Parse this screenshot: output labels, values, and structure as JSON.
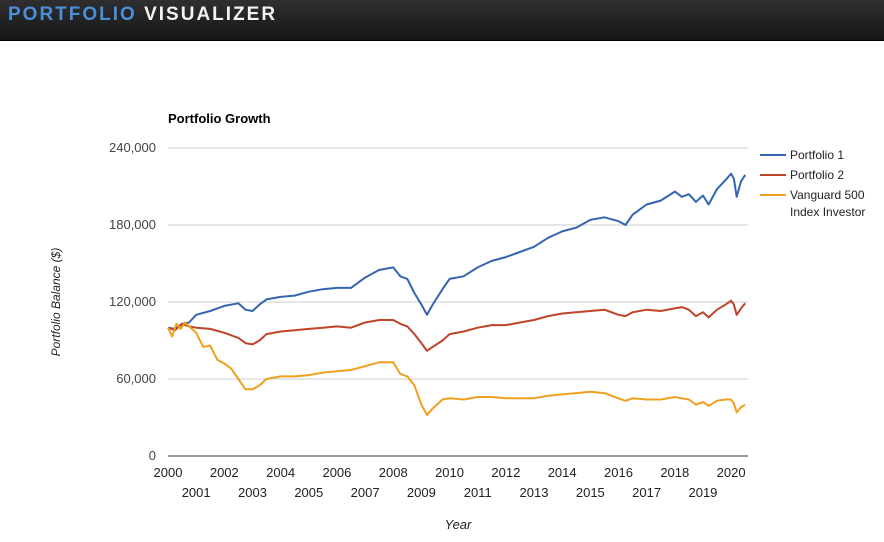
{
  "header": {
    "brand_part1": "PORTFOLIO",
    "brand_part2": "VISUALIZER"
  },
  "colors": {
    "brand_blue": "#4a90d9",
    "portfolio1": "#3465b0",
    "portfolio2": "#c1432a",
    "vanguard": "#f0a01e",
    "grid": "#cccccc"
  },
  "chart_data": {
    "type": "line",
    "title": "Portfolio Growth",
    "xlabel": "Year",
    "ylabel": "Portfolio Balance ($)",
    "xlim": [
      2000,
      2020.6
    ],
    "ylim": [
      0,
      240000
    ],
    "y_ticks": [
      0,
      60000,
      120000,
      180000,
      240000
    ],
    "y_tick_labels": [
      "0",
      "60,000",
      "120,000",
      "180,000",
      "240,000"
    ],
    "x_ticks_top_row": [
      "2000",
      "2002",
      "2004",
      "2006",
      "2008",
      "2010",
      "2012",
      "2014",
      "2016",
      "2018",
      "2020"
    ],
    "x_ticks_bottom_row": [
      "2001",
      "2003",
      "2005",
      "2007",
      "2009",
      "2011",
      "2013",
      "2015",
      "2017",
      "2019"
    ],
    "legend_position": "right",
    "grid": true,
    "series": [
      {
        "name": "Portfolio 1",
        "legend_lines": [
          "Portfolio 1"
        ],
        "points": [
          [
            2000,
            100000
          ],
          [
            2000.25,
            99000
          ],
          [
            2000.5,
            103000
          ],
          [
            2000.75,
            104000
          ],
          [
            2001,
            110000
          ],
          [
            2001.5,
            113000
          ],
          [
            2002,
            117000
          ],
          [
            2002.5,
            119000
          ],
          [
            2002.75,
            114000
          ],
          [
            2003,
            113000
          ],
          [
            2003.25,
            118000
          ],
          [
            2003.5,
            122000
          ],
          [
            2004,
            124000
          ],
          [
            2004.5,
            125000
          ],
          [
            2005,
            128000
          ],
          [
            2005.5,
            130000
          ],
          [
            2006,
            131000
          ],
          [
            2006.5,
            131000
          ],
          [
            2007,
            139000
          ],
          [
            2007.5,
            145000
          ],
          [
            2008,
            147000
          ],
          [
            2008.25,
            140000
          ],
          [
            2008.5,
            138000
          ],
          [
            2008.75,
            127000
          ],
          [
            2009,
            118000
          ],
          [
            2009.2,
            110000
          ],
          [
            2009.4,
            118000
          ],
          [
            2009.75,
            130000
          ],
          [
            2010,
            138000
          ],
          [
            2010.5,
            140000
          ],
          [
            2011,
            147000
          ],
          [
            2011.5,
            152000
          ],
          [
            2012,
            155000
          ],
          [
            2012.5,
            159000
          ],
          [
            2013,
            163000
          ],
          [
            2013.5,
            170000
          ],
          [
            2014,
            175000
          ],
          [
            2014.5,
            178000
          ],
          [
            2015,
            184000
          ],
          [
            2015.5,
            186000
          ],
          [
            2016,
            183000
          ],
          [
            2016.25,
            180000
          ],
          [
            2016.5,
            188000
          ],
          [
            2017,
            196000
          ],
          [
            2017.5,
            199000
          ],
          [
            2018,
            206000
          ],
          [
            2018.25,
            202000
          ],
          [
            2018.5,
            204000
          ],
          [
            2018.75,
            198000
          ],
          [
            2019,
            203000
          ],
          [
            2019.2,
            196000
          ],
          [
            2019.5,
            208000
          ],
          [
            2019.8,
            215000
          ],
          [
            2020,
            220000
          ],
          [
            2020.1,
            216000
          ],
          [
            2020.2,
            202000
          ],
          [
            2020.35,
            214000
          ],
          [
            2020.5,
            219000
          ]
        ]
      },
      {
        "name": "Portfolio 2",
        "legend_lines": [
          "Portfolio 2"
        ],
        "points": [
          [
            2000,
            100000
          ],
          [
            2000.25,
            98000
          ],
          [
            2000.5,
            103000
          ],
          [
            2000.75,
            101000
          ],
          [
            2001,
            100000
          ],
          [
            2001.5,
            99000
          ],
          [
            2002,
            96000
          ],
          [
            2002.5,
            92000
          ],
          [
            2002.75,
            88000
          ],
          [
            2003,
            87000
          ],
          [
            2003.25,
            90000
          ],
          [
            2003.5,
            95000
          ],
          [
            2004,
            97000
          ],
          [
            2004.5,
            98000
          ],
          [
            2005,
            99000
          ],
          [
            2005.5,
            100000
          ],
          [
            2006,
            101000
          ],
          [
            2006.5,
            100000
          ],
          [
            2007,
            104000
          ],
          [
            2007.5,
            106000
          ],
          [
            2008,
            106000
          ],
          [
            2008.25,
            103000
          ],
          [
            2008.5,
            101000
          ],
          [
            2008.75,
            95000
          ],
          [
            2009,
            88000
          ],
          [
            2009.2,
            82000
          ],
          [
            2009.4,
            85000
          ],
          [
            2009.75,
            90000
          ],
          [
            2010,
            95000
          ],
          [
            2010.5,
            97000
          ],
          [
            2011,
            100000
          ],
          [
            2011.5,
            102000
          ],
          [
            2012,
            102000
          ],
          [
            2012.5,
            104000
          ],
          [
            2013,
            106000
          ],
          [
            2013.5,
            109000
          ],
          [
            2014,
            111000
          ],
          [
            2014.5,
            112000
          ],
          [
            2015,
            113000
          ],
          [
            2015.5,
            114000
          ],
          [
            2016,
            110000
          ],
          [
            2016.25,
            109000
          ],
          [
            2016.5,
            112000
          ],
          [
            2017,
            114000
          ],
          [
            2017.5,
            113000
          ],
          [
            2018,
            115000
          ],
          [
            2018.25,
            116000
          ],
          [
            2018.5,
            114000
          ],
          [
            2018.75,
            109000
          ],
          [
            2019,
            112000
          ],
          [
            2019.2,
            108000
          ],
          [
            2019.5,
            114000
          ],
          [
            2019.8,
            118000
          ],
          [
            2020,
            121000
          ],
          [
            2020.1,
            118000
          ],
          [
            2020.2,
            110000
          ],
          [
            2020.35,
            115000
          ],
          [
            2020.5,
            119000
          ]
        ]
      },
      {
        "name": "Vanguard 500 Index Investor",
        "legend_lines": [
          "Vanguard 500",
          "Index Investor"
        ],
        "points": [
          [
            2000,
            100000
          ],
          [
            2000.15,
            93000
          ],
          [
            2000.3,
            103000
          ],
          [
            2000.45,
            99000
          ],
          [
            2000.6,
            104000
          ],
          [
            2000.75,
            101000
          ],
          [
            2001,
            96000
          ],
          [
            2001.25,
            85000
          ],
          [
            2001.5,
            86000
          ],
          [
            2001.75,
            75000
          ],
          [
            2002,
            72000
          ],
          [
            2002.25,
            68000
          ],
          [
            2002.5,
            60000
          ],
          [
            2002.75,
            52000
          ],
          [
            2003,
            52000
          ],
          [
            2003.25,
            55000
          ],
          [
            2003.5,
            60000
          ],
          [
            2004,
            62000
          ],
          [
            2004.5,
            62000
          ],
          [
            2005,
            63000
          ],
          [
            2005.5,
            65000
          ],
          [
            2006,
            66000
          ],
          [
            2006.5,
            67000
          ],
          [
            2007,
            70000
          ],
          [
            2007.5,
            73000
          ],
          [
            2008,
            73000
          ],
          [
            2008.25,
            64000
          ],
          [
            2008.5,
            62000
          ],
          [
            2008.75,
            55000
          ],
          [
            2009,
            40000
          ],
          [
            2009.2,
            32000
          ],
          [
            2009.4,
            37000
          ],
          [
            2009.75,
            44000
          ],
          [
            2010,
            45000
          ],
          [
            2010.5,
            44000
          ],
          [
            2011,
            46000
          ],
          [
            2011.5,
            46000
          ],
          [
            2012,
            45000
          ],
          [
            2012.5,
            45000
          ],
          [
            2013,
            45000
          ],
          [
            2013.5,
            47000
          ],
          [
            2014,
            48000
          ],
          [
            2014.5,
            49000
          ],
          [
            2015,
            50000
          ],
          [
            2015.5,
            49000
          ],
          [
            2016,
            45000
          ],
          [
            2016.25,
            43000
          ],
          [
            2016.5,
            45000
          ],
          [
            2017,
            44000
          ],
          [
            2017.5,
            44000
          ],
          [
            2018,
            46000
          ],
          [
            2018.25,
            45000
          ],
          [
            2018.5,
            44000
          ],
          [
            2018.75,
            40000
          ],
          [
            2019,
            42000
          ],
          [
            2019.2,
            39000
          ],
          [
            2019.5,
            43000
          ],
          [
            2019.8,
            44000
          ],
          [
            2020,
            44000
          ],
          [
            2020.1,
            41000
          ],
          [
            2020.2,
            34000
          ],
          [
            2020.35,
            38000
          ],
          [
            2020.5,
            40000
          ]
        ]
      }
    ]
  }
}
